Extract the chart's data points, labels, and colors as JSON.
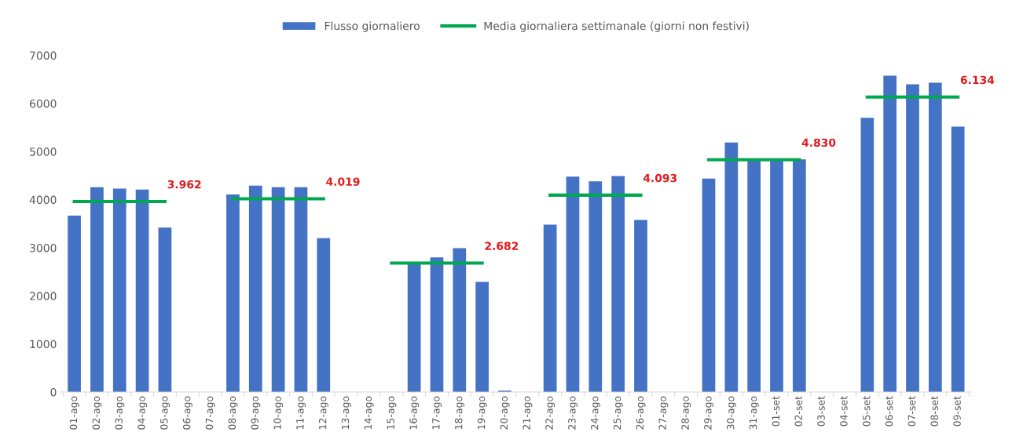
{
  "chart_data": {
    "type": "bar",
    "categories": [
      "01-ago",
      "02-ago",
      "03-ago",
      "04-ago",
      "05-ago",
      "06-ago",
      "07-ago",
      "08-ago",
      "09-ago",
      "10-ago",
      "11-ago",
      "12-ago",
      "13-ago",
      "14-ago",
      "15-ago",
      "16-ago",
      "17-ago",
      "18-ago",
      "19-ago",
      "20-ago",
      "21-ago",
      "22-ago",
      "23-ago",
      "24-ago",
      "25-ago",
      "26-ago",
      "27-ago",
      "28-ago",
      "29-ago",
      "30-ago",
      "31-ago",
      "01-set",
      "02-set",
      "03-set",
      "04-set",
      "05-set",
      "06-set",
      "07-set",
      "08-set",
      "09-set"
    ],
    "series": [
      {
        "name": "Flusso giornaliero",
        "color": "#4472c4",
        "values": [
          3670,
          4260,
          4230,
          4210,
          3420,
          null,
          null,
          4110,
          4290,
          4260,
          4260,
          3200,
          null,
          null,
          null,
          2690,
          2800,
          2990,
          2290,
          30,
          null,
          3480,
          4480,
          4380,
          4490,
          3580,
          null,
          null,
          4440,
          5190,
          4810,
          4810,
          4840,
          null,
          null,
          5700,
          6580,
          6400,
          6430,
          5520
        ]
      },
      {
        "name": "Media giornaliera settimanale (giorni non festivi)",
        "type": "line",
        "color": "#00a84f",
        "values": [
          3962,
          3962,
          3962,
          3962,
          3962,
          null,
          null,
          4019,
          4019,
          4019,
          4019,
          4019,
          null,
          null,
          2682,
          2682,
          2682,
          2682,
          2682,
          null,
          null,
          4093,
          4093,
          4093,
          4093,
          4093,
          null,
          null,
          4830,
          4830,
          4830,
          4830,
          4830,
          null,
          null,
          6134,
          6134,
          6134,
          6134,
          6134
        ],
        "value_labels": [
          null,
          null,
          null,
          null,
          "3.962",
          null,
          null,
          null,
          null,
          null,
          null,
          "4.019",
          null,
          null,
          null,
          null,
          null,
          null,
          "2.682",
          null,
          null,
          null,
          null,
          null,
          null,
          "4.093",
          null,
          null,
          null,
          null,
          null,
          null,
          "4.830",
          null,
          null,
          null,
          null,
          null,
          null,
          "6.134"
        ]
      }
    ],
    "ylim": [
      0,
      7000
    ],
    "yticks": [
      0,
      1000,
      2000,
      3000,
      4000,
      5000,
      6000,
      7000
    ],
    "grid": false,
    "legend": "top",
    "marker": "none",
    "line_style": "solid"
  }
}
